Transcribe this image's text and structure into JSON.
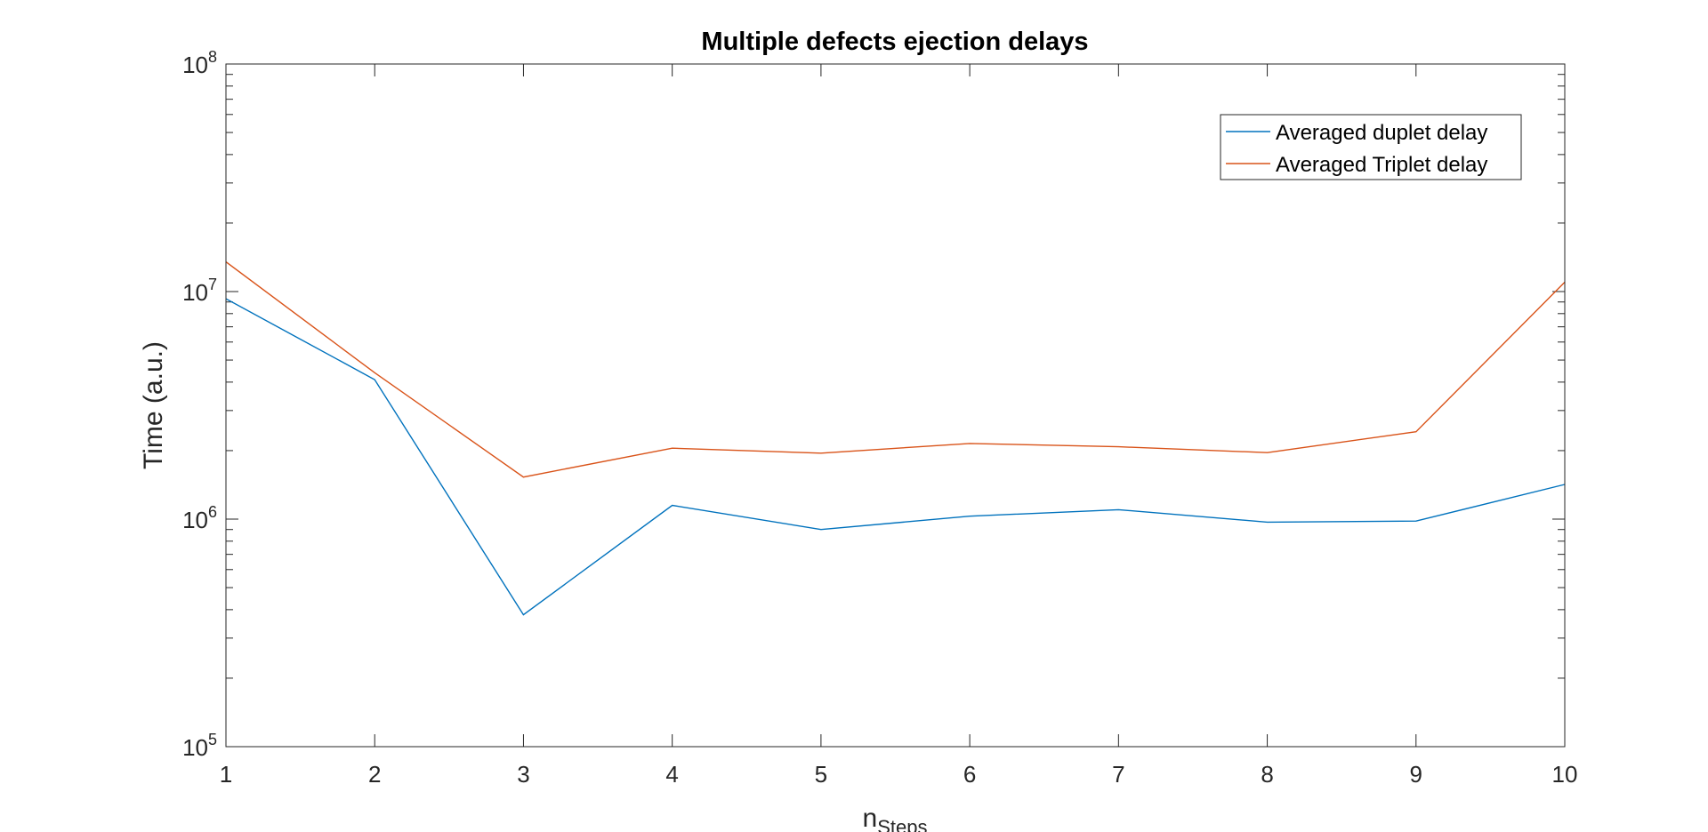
{
  "chart_data": {
    "type": "line",
    "title": "Multiple defects ejection delays",
    "xlabel": {
      "main": "n",
      "sub": "Steps"
    },
    "ylabel": "Time (a.u.)",
    "x": [
      1,
      2,
      3,
      4,
      5,
      6,
      7,
      8,
      9,
      10
    ],
    "xlim": [
      1,
      10
    ],
    "ylim": [
      100000,
      100000000
    ],
    "yscale": "log",
    "grid": false,
    "legend_position": "top-right",
    "yticks": [
      {
        "base": "10",
        "exp": "5",
        "value": 100000
      },
      {
        "base": "10",
        "exp": "6",
        "value": 1000000
      },
      {
        "base": "10",
        "exp": "7",
        "value": 10000000
      },
      {
        "base": "10",
        "exp": "8",
        "value": 100000000
      }
    ],
    "series": [
      {
        "name": "Averaged duplet delay",
        "color": "#0072BD",
        "values": [
          9300000,
          4100000,
          380000,
          1150000,
          900000,
          1030000,
          1100000,
          970000,
          980000,
          1420000
        ]
      },
      {
        "name": "Averaged Triplet delay",
        "color": "#D95319",
        "values": [
          13500000,
          4400000,
          1530000,
          2050000,
          1950000,
          2150000,
          2080000,
          1960000,
          2420000,
          11000000
        ]
      }
    ]
  }
}
